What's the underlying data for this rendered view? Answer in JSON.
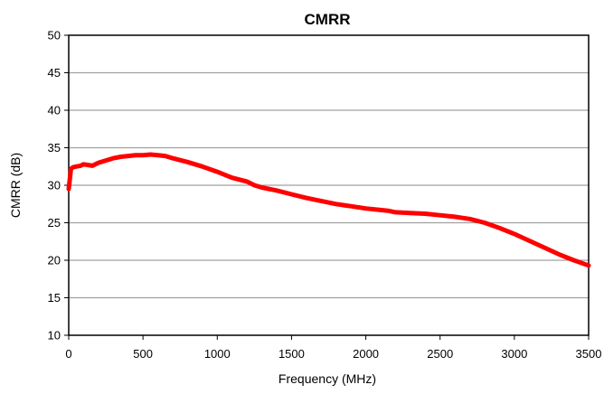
{
  "chart_data": {
    "type": "line",
    "title": "CMRR",
    "xlabel": "Frequency (MHz)",
    "ylabel": "CMRR (dB)",
    "xlim": [
      0,
      3500
    ],
    "ylim": [
      10,
      50
    ],
    "xticks": [
      0,
      500,
      1000,
      1500,
      2000,
      2500,
      3000,
      3500
    ],
    "yticks": [
      10,
      15,
      20,
      25,
      30,
      35,
      40,
      45,
      50
    ],
    "x_tick_labels": [
      "0",
      "500",
      "1000",
      "1500",
      "2000",
      "2500",
      "3000",
      "3500"
    ],
    "y_tick_labels": [
      "10",
      "15",
      "20",
      "25",
      "30",
      "35",
      "40",
      "45",
      "50"
    ],
    "grid": "horizontal",
    "legend": "none",
    "series": [
      {
        "color": "#ff0000",
        "x": [
          0,
          15,
          30,
          50,
          80,
          100,
          130,
          160,
          200,
          250,
          300,
          350,
          400,
          450,
          500,
          550,
          600,
          650,
          700,
          800,
          900,
          1000,
          1100,
          1200,
          1250,
          1300,
          1400,
          1500,
          1600,
          1700,
          1800,
          1900,
          2000,
          2100,
          2150,
          2200,
          2300,
          2400,
          2500,
          2600,
          2700,
          2800,
          2900,
          3000,
          3100,
          3200,
          3300,
          3400,
          3500
        ],
        "y": [
          29.5,
          32.2,
          32.4,
          32.5,
          32.6,
          32.8,
          32.7,
          32.6,
          33.0,
          33.3,
          33.6,
          33.8,
          33.9,
          34.0,
          34.0,
          34.1,
          34.0,
          33.9,
          33.6,
          33.1,
          32.5,
          31.8,
          31.0,
          30.5,
          30.0,
          29.7,
          29.3,
          28.8,
          28.3,
          27.9,
          27.5,
          27.2,
          26.9,
          26.7,
          26.6,
          26.4,
          26.3,
          26.2,
          26.0,
          25.8,
          25.5,
          25.0,
          24.3,
          23.5,
          22.6,
          21.7,
          20.8,
          20.0,
          19.3
        ]
      }
    ]
  }
}
